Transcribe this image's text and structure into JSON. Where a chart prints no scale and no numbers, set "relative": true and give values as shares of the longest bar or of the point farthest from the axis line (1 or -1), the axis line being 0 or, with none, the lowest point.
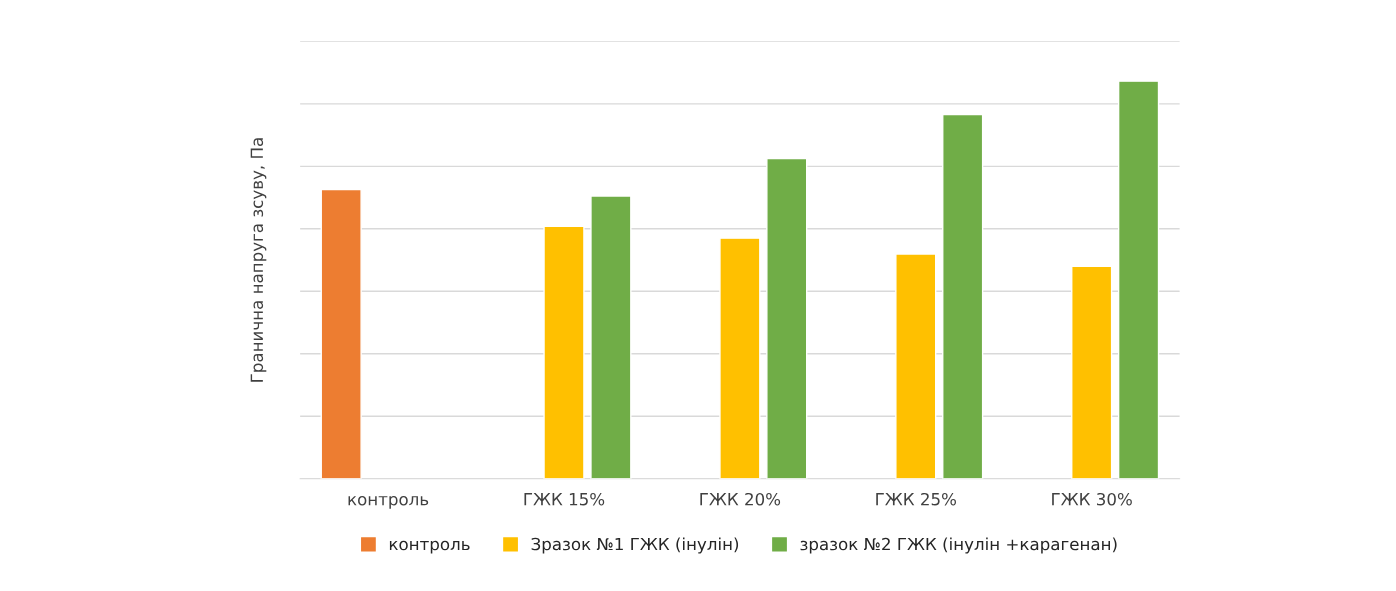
{
  "chart_data": {
    "type": "bar",
    "ylabel": "Гранична напруга зсуву, Па",
    "relative": true,
    "grid": "y",
    "legend": "bottom",
    "categories": [
      "контроль",
      "ГЖК 15%",
      "ГЖК 20%",
      "ГЖК 25%",
      "ГЖК 30%"
    ],
    "series": [
      {
        "name": "контроль",
        "color": "#ed7d31",
        "values": [
          0.727,
          null,
          null,
          null,
          null
        ]
      },
      {
        "name": "Зразок №1 ГЖК (інулін)",
        "color": "#ffc000",
        "values": [
          null,
          0.635,
          0.605,
          0.565,
          0.534
        ]
      },
      {
        "name": "зразок №2 ГЖК (інулін +карагенан)",
        "color": "#70ad47",
        "values": [
          null,
          0.711,
          0.805,
          0.916,
          1.0
        ]
      }
    ]
  }
}
